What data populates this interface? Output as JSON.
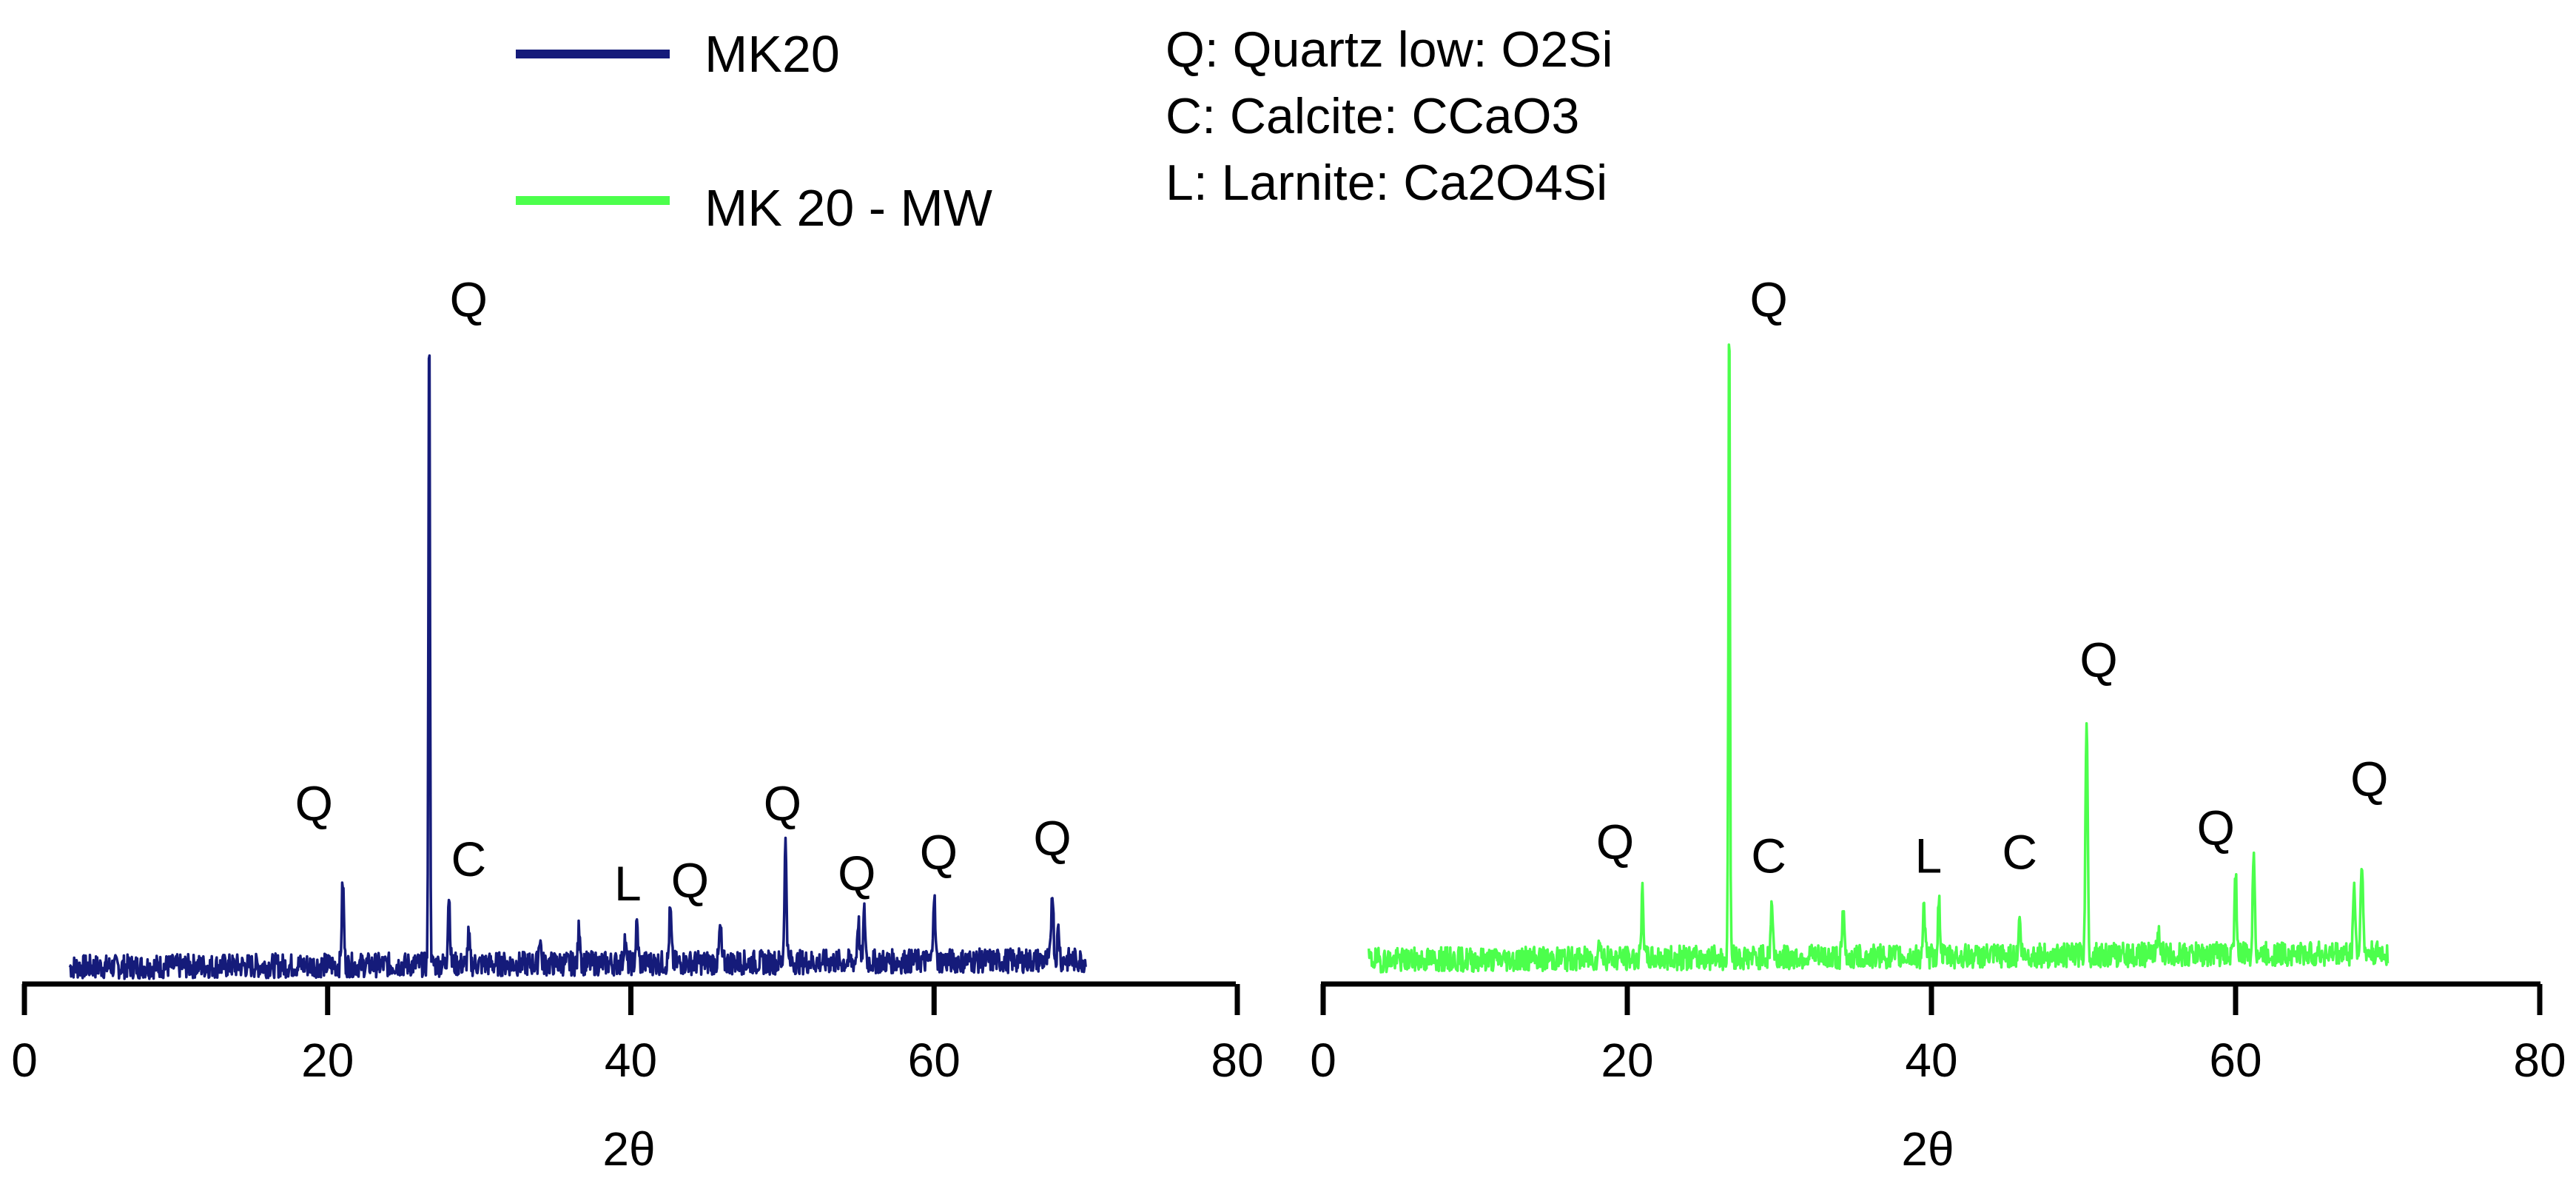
{
  "legend": {
    "entries": [
      {
        "label": "MK20",
        "color": "#151B7A"
      },
      {
        "label": "MK 20 - MW",
        "color": "#4CFF4C"
      }
    ]
  },
  "phase_key": [
    "Q: Quartz low: O2Si",
    "C: Calcite: CCaO3",
    "L: Larnite: Ca2O4Si"
  ],
  "chart_data": [
    {
      "type": "line",
      "series": [
        {
          "name": "MK20",
          "color": "#151B7A"
        }
      ],
      "xlabel": "2θ",
      "ylabel": "",
      "xlim": [
        0,
        80
      ],
      "xticks": [
        0,
        20,
        40,
        60,
        80
      ],
      "y_axis_visible": false,
      "x_range_data": [
        3,
        70
      ],
      "baseline": 4,
      "peaks": [
        {
          "x": 21.0,
          "y": 28
        },
        {
          "x": 26.7,
          "y": 195
        },
        {
          "x": 28.0,
          "y": 24
        },
        {
          "x": 29.3,
          "y": 12
        },
        {
          "x": 34.0,
          "y": 12
        },
        {
          "x": 36.6,
          "y": 15
        },
        {
          "x": 39.6,
          "y": 11
        },
        {
          "x": 40.4,
          "y": 15
        },
        {
          "x": 42.6,
          "y": 19
        },
        {
          "x": 45.9,
          "y": 14
        },
        {
          "x": 50.2,
          "y": 38
        },
        {
          "x": 55.0,
          "y": 16
        },
        {
          "x": 55.4,
          "y": 18
        },
        {
          "x": 60.0,
          "y": 23
        },
        {
          "x": 67.8,
          "y": 25
        },
        {
          "x": 68.2,
          "y": 13
        }
      ],
      "annotations": [
        {
          "text": "Q",
          "x": 19.1,
          "y": 46
        },
        {
          "text": "Q",
          "x": 29.3,
          "y": 190
        },
        {
          "text": "C",
          "x": 29.3,
          "y": 30
        },
        {
          "text": "L",
          "x": 39.8,
          "y": 23
        },
        {
          "text": "Q",
          "x": 43.9,
          "y": 24
        },
        {
          "text": "Q",
          "x": 50.0,
          "y": 46
        },
        {
          "text": "Q",
          "x": 54.9,
          "y": 26
        },
        {
          "text": "Q",
          "x": 60.3,
          "y": 32
        },
        {
          "text": "Q",
          "x": 67.8,
          "y": 36
        }
      ]
    },
    {
      "type": "line",
      "series": [
        {
          "name": "MK 20 - MW",
          "color": "#4CFF4C"
        }
      ],
      "xlabel": "2θ",
      "ylabel": "",
      "xlim": [
        0,
        80
      ],
      "xticks": [
        0,
        20,
        40,
        60,
        80
      ],
      "y_axis_visible": false,
      "x_range_data": [
        3,
        70
      ],
      "baseline": 6,
      "peaks": [
        {
          "x": 18.2,
          "y": 12
        },
        {
          "x": 21.0,
          "y": 24
        },
        {
          "x": 26.7,
          "y": 195
        },
        {
          "x": 29.5,
          "y": 22
        },
        {
          "x": 34.2,
          "y": 18
        },
        {
          "x": 39.5,
          "y": 20
        },
        {
          "x": 40.5,
          "y": 22
        },
        {
          "x": 45.8,
          "y": 16
        },
        {
          "x": 50.2,
          "y": 75
        },
        {
          "x": 54.9,
          "y": 14
        },
        {
          "x": 60.0,
          "y": 30
        },
        {
          "x": 61.2,
          "y": 35
        },
        {
          "x": 67.8,
          "y": 26
        },
        {
          "x": 68.3,
          "y": 34
        }
      ],
      "annotations": [
        {
          "text": "Q",
          "x": 19.2,
          "y": 35
        },
        {
          "text": "Q",
          "x": 29.3,
          "y": 190
        },
        {
          "text": "C",
          "x": 29.3,
          "y": 31
        },
        {
          "text": "L",
          "x": 39.8,
          "y": 31
        },
        {
          "text": "C",
          "x": 45.8,
          "y": 32
        },
        {
          "text": "Q",
          "x": 51.0,
          "y": 87
        },
        {
          "text": "Q",
          "x": 58.7,
          "y": 39
        },
        {
          "text": "Q",
          "x": 68.8,
          "y": 53
        }
      ]
    }
  ]
}
